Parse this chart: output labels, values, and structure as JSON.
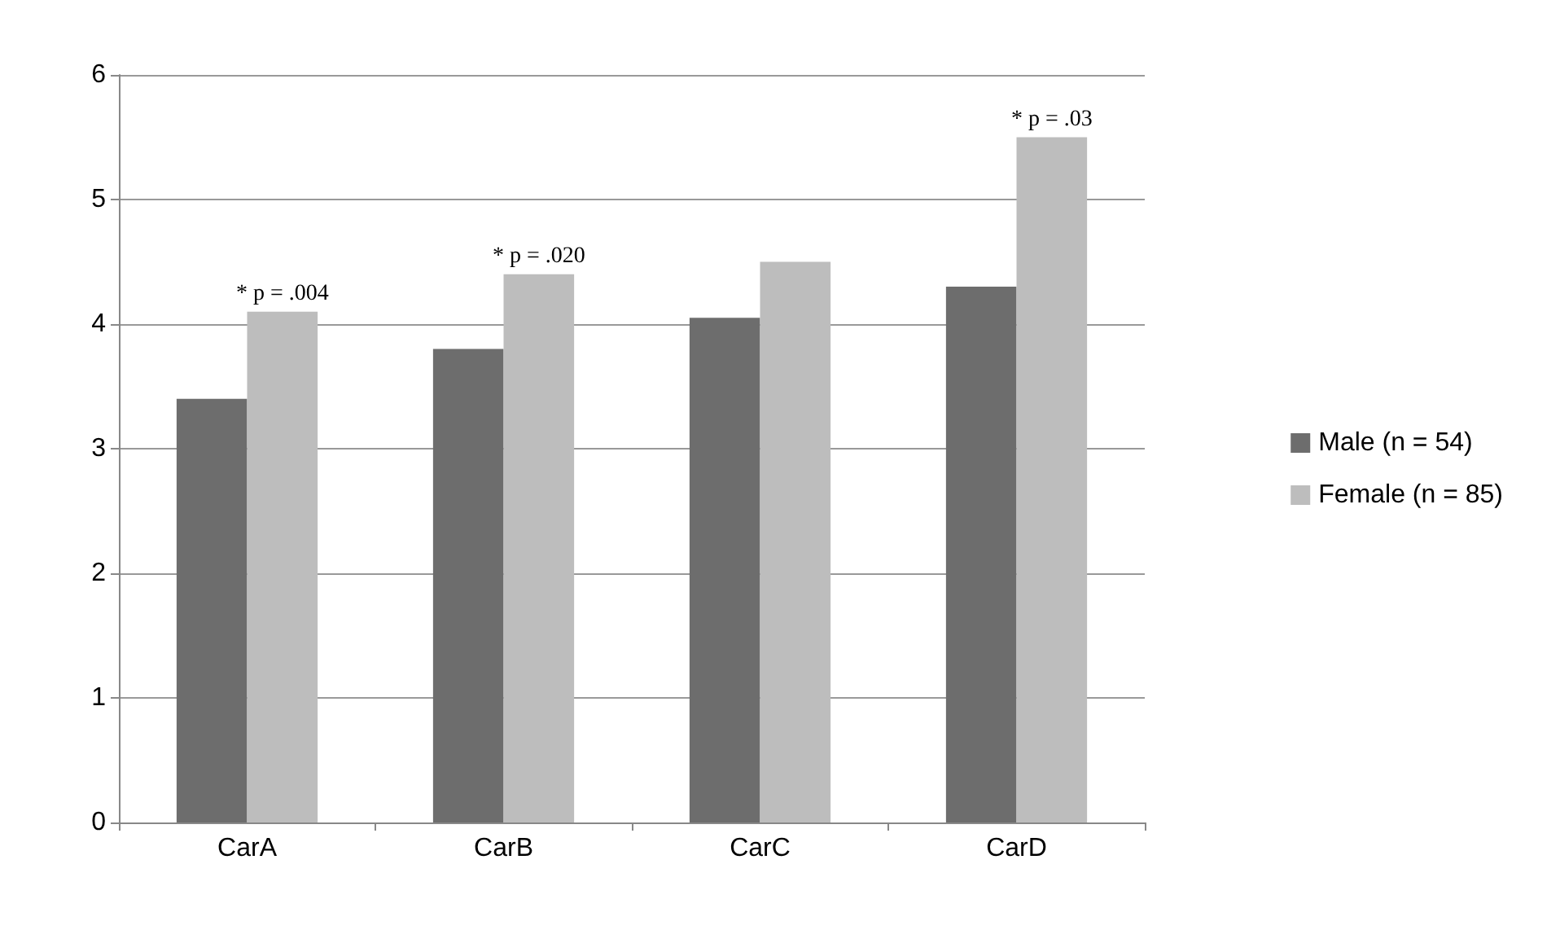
{
  "chart_data": {
    "type": "bar",
    "categories": [
      "CarA",
      "CarB",
      "CarC",
      "CarD"
    ],
    "series": [
      {
        "name": "Male (n = 54)",
        "color": "#6d6d6d",
        "values": [
          3.4,
          3.8,
          4.05,
          4.3
        ]
      },
      {
        "name": "Female (n = 85)",
        "color": "#bdbdbd",
        "values": [
          4.1,
          4.4,
          4.5,
          5.5
        ]
      }
    ],
    "ylim": [
      0,
      6
    ],
    "yticks": [
      0,
      1,
      2,
      3,
      4,
      5,
      6
    ],
    "grid": "y",
    "legend": "right",
    "annotations": [
      {
        "text": "* p = .004",
        "x": "CarA",
        "y": 4.1
      },
      {
        "text": "* p = .020",
        "x": "CarB",
        "y": 4.4
      },
      {
        "text": "* p = .03",
        "x": "CarD",
        "y": 5.5
      }
    ]
  }
}
